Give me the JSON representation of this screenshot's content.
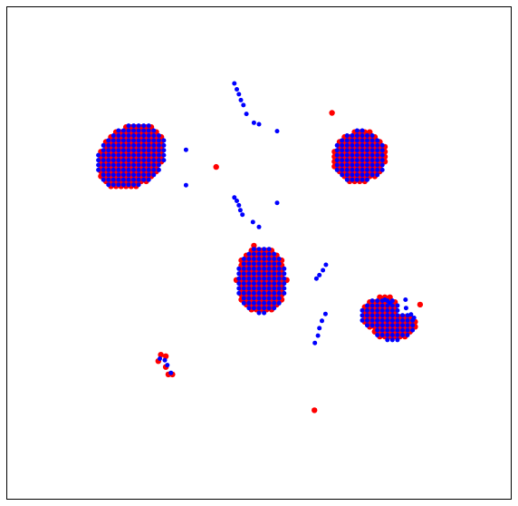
{
  "chart_data": {
    "type": "scatter",
    "title": "",
    "xlabel": "",
    "ylabel": "",
    "xlim": [
      0,
      100
    ],
    "ylim": [
      0,
      100
    ],
    "grid": false,
    "axes_visible": false,
    "legend": "none",
    "series": [
      {
        "color": "#ff0000",
        "role": "back-layer",
        "marker_size": 3.2,
        "clusters": [
          {
            "shape": "blob",
            "center": [
              24.6,
              69.6
            ],
            "rx": 7.5,
            "ry": 6.0,
            "rotate": 40,
            "step": 1.0,
            "offset": [
              0.0,
              0.0
            ]
          },
          {
            "shape": "blob",
            "center": [
              70.0,
              69.6
            ],
            "rx": 5.5,
            "ry": 5.3,
            "rotate": 35,
            "step": 1.0,
            "offset": [
              0.0,
              0.0
            ]
          },
          {
            "shape": "blob",
            "center": [
              50.5,
              44.5
            ],
            "rx": 5.0,
            "ry": 6.8,
            "rotate": 0,
            "step": 1.0,
            "offset": [
              0.0,
              0.0
            ]
          },
          {
            "shape": "blob",
            "center": [
              74.0,
              38.0
            ],
            "rx": 4.0,
            "ry": 3.0,
            "rotate": 30,
            "step": 1.0,
            "offset": [
              0.0,
              0.0
            ]
          },
          {
            "shape": "blob",
            "center": [
              77.0,
              35.0
            ],
            "rx": 4.5,
            "ry": 2.8,
            "rotate": 10,
            "step": 1.0,
            "offset": [
              0.0,
              0.0
            ]
          }
        ],
        "points": [
          [
            41.5,
            67.5
          ],
          [
            64.5,
            78.5
          ],
          [
            49.0,
            51.5
          ],
          [
            82.0,
            39.5
          ],
          [
            30.5,
            29.3
          ],
          [
            31.5,
            29.0
          ],
          [
            30.0,
            28.0
          ],
          [
            31.5,
            26.8
          ],
          [
            32.0,
            25.3
          ],
          [
            32.8,
            25.3
          ],
          [
            61.0,
            18.0
          ],
          [
            72.0,
            36.0
          ],
          [
            73.0,
            34.0
          ],
          [
            75.0,
            34.0
          ]
        ]
      },
      {
        "color": "#0000ff",
        "role": "front-layer",
        "marker_size": 2.5,
        "clusters": [
          {
            "shape": "blob",
            "center": [
              24.6,
              69.6
            ],
            "rx": 7.5,
            "ry": 6.0,
            "rotate": 40,
            "step": 1.0,
            "offset": [
              0.5,
              0.3
            ]
          },
          {
            "shape": "blob",
            "center": [
              70.0,
              69.6
            ],
            "rx": 5.5,
            "ry": 5.3,
            "rotate": 35,
            "step": 1.0,
            "offset": [
              0.5,
              0.3
            ]
          },
          {
            "shape": "blob",
            "center": [
              50.5,
              44.5
            ],
            "rx": 5.0,
            "ry": 6.8,
            "rotate": 0,
            "step": 1.0,
            "offset": [
              0.5,
              0.3
            ]
          },
          {
            "shape": "blob",
            "center": [
              74.0,
              38.0
            ],
            "rx": 4.0,
            "ry": 3.0,
            "rotate": 30,
            "step": 1.0,
            "offset": [
              0.5,
              0.3
            ]
          },
          {
            "shape": "blob",
            "center": [
              77.0,
              35.0
            ],
            "rx": 4.5,
            "ry": 2.8,
            "rotate": 10,
            "step": 1.0,
            "offset": [
              0.5,
              0.3
            ]
          }
        ],
        "points": [
          [
            45.1,
            84.5
          ],
          [
            45.6,
            83.3
          ],
          [
            46.0,
            82.3
          ],
          [
            46.4,
            81.1
          ],
          [
            46.9,
            80.1
          ],
          [
            47.5,
            78.3
          ],
          [
            49.0,
            76.5
          ],
          [
            50.0,
            76.2
          ],
          [
            53.6,
            74.8
          ],
          [
            35.5,
            71.0
          ],
          [
            35.5,
            63.8
          ],
          [
            45.1,
            61.3
          ],
          [
            45.6,
            60.6
          ],
          [
            46.0,
            59.7
          ],
          [
            46.3,
            58.7
          ],
          [
            46.7,
            57.8
          ],
          [
            48.8,
            56.3
          ],
          [
            50.0,
            55.3
          ],
          [
            53.6,
            60.2
          ],
          [
            63.3,
            47.6
          ],
          [
            62.7,
            46.5
          ],
          [
            62.0,
            45.5
          ],
          [
            61.4,
            44.8
          ],
          [
            63.2,
            37.6
          ],
          [
            62.5,
            36.2
          ],
          [
            62.0,
            34.7
          ],
          [
            61.7,
            33.2
          ],
          [
            61.1,
            31.7
          ],
          [
            79.1,
            40.5
          ],
          [
            79.2,
            38.8
          ],
          [
            80.2,
            37.5
          ],
          [
            80.8,
            36.8
          ],
          [
            30.3,
            28.5
          ],
          [
            31.3,
            28.2
          ],
          [
            31.8,
            27.2
          ],
          [
            32.5,
            25.6
          ],
          [
            75.0,
            40.5
          ],
          [
            76.0,
            39.8
          ]
        ]
      }
    ]
  }
}
